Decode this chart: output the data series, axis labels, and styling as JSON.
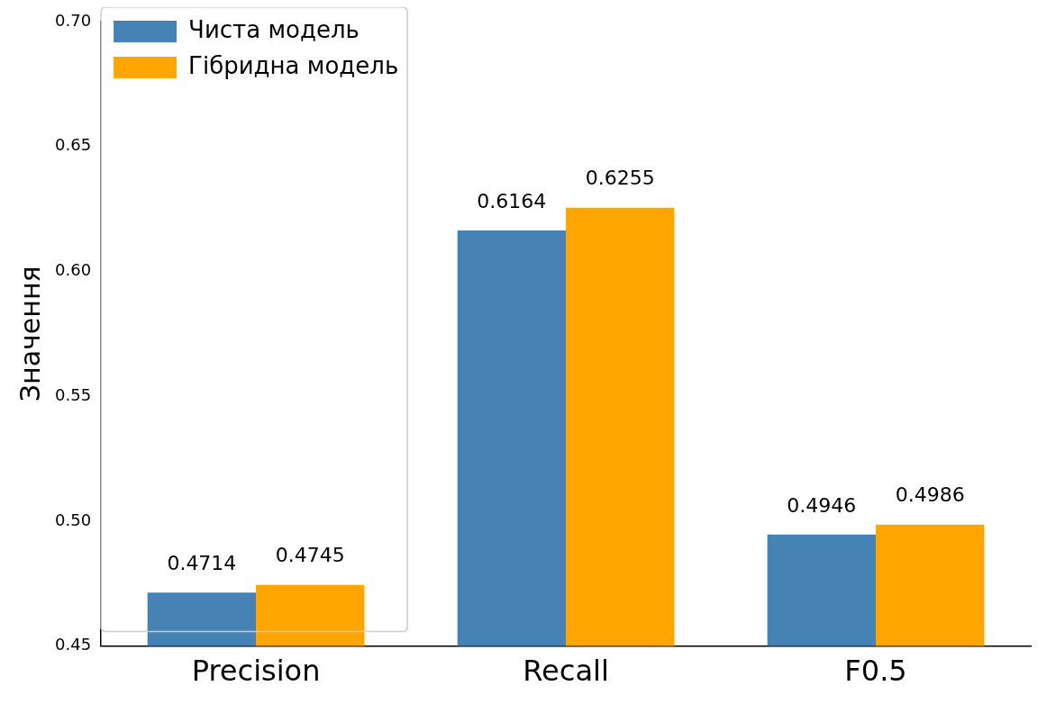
{
  "chart_data": {
    "type": "bar",
    "ylabel": "Значення",
    "categories": [
      "Precision",
      "Recall",
      "F0.5"
    ],
    "series": [
      {
        "name": "Чиста модель",
        "color": "#4682b4",
        "values": [
          0.4714,
          0.6164,
          0.4946
        ]
      },
      {
        "name": "Гібридна модель",
        "color": "#ffa500",
        "values": [
          0.4745,
          0.6255,
          0.4986
        ]
      }
    ],
    "ylim": [
      0.45,
      0.7
    ],
    "yticks": [
      0.45,
      {
        "value": 0.5,
        "label": "0.50"
      },
      0.55,
      {
        "value": 0.6,
        "label": "0.60"
      },
      0.65,
      {
        "value": 0.7,
        "label": "0.70"
      }
    ],
    "grid": false,
    "legend": "top left",
    "data_labels": true
  }
}
